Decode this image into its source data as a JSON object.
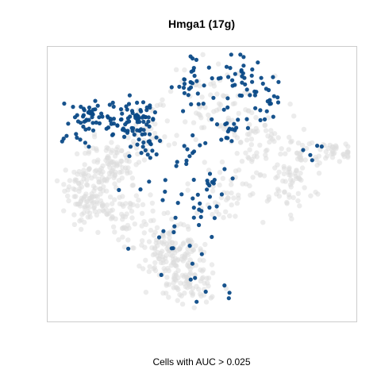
{
  "chart_data": {
    "type": "scatter",
    "title": "Hmga1 (17g)",
    "xlabel": "",
    "ylabel": "",
    "caption": "Cells with AUC > 0.025",
    "grid": false,
    "axes_visible": false,
    "colors": {
      "background_cell": "#dcdcdc",
      "highlighted_cell": "#0b4a87",
      "frame": "#cccccc"
    },
    "series": [
      {
        "role": "cells below threshold",
        "color": "#dcdcdc",
        "clusters": [
          {
            "center": [
              0.13,
              0.53
            ],
            "spread": [
              0.04,
              0.055
            ],
            "count": 110
          },
          {
            "center": [
              0.2,
              0.43
            ],
            "spread": [
              0.05,
              0.05
            ],
            "count": 90
          },
          {
            "center": [
              0.25,
              0.62
            ],
            "spread": [
              0.05,
              0.05
            ],
            "count": 60
          },
          {
            "center": [
              0.4,
              0.74
            ],
            "spread": [
              0.06,
              0.05
            ],
            "count": 140
          },
          {
            "center": [
              0.46,
              0.86
            ],
            "spread": [
              0.05,
              0.04
            ],
            "count": 80
          },
          {
            "center": [
              0.55,
              0.2
            ],
            "spread": [
              0.08,
              0.06
            ],
            "count": 70
          },
          {
            "center": [
              0.58,
              0.52
            ],
            "spread": [
              0.06,
              0.06
            ],
            "count": 50
          },
          {
            "center": [
              0.8,
              0.46
            ],
            "spread": [
              0.05,
              0.09
            ],
            "count": 80
          },
          {
            "center": [
              0.93,
              0.38
            ],
            "spread": [
              0.04,
              0.02
            ],
            "count": 40
          },
          {
            "center": [
              0.66,
              0.35
            ],
            "spread": [
              0.05,
              0.05
            ],
            "count": 45
          },
          {
            "center": [
              0.3,
              0.3
            ],
            "spread": [
              0.05,
              0.05
            ],
            "count": 40
          }
        ]
      },
      {
        "role": "cells with AUC > 0.025",
        "color": "#0b4a87",
        "clusters": [
          {
            "center": [
              0.28,
              0.26
            ],
            "spread": [
              0.035,
              0.04
            ],
            "count": 70
          },
          {
            "center": [
              0.15,
              0.24
            ],
            "spread": [
              0.045,
              0.03
            ],
            "count": 45
          },
          {
            "center": [
              0.08,
              0.32
            ],
            "spread": [
              0.03,
              0.02
            ],
            "count": 12
          },
          {
            "center": [
              0.32,
              0.36
            ],
            "spread": [
              0.03,
              0.03
            ],
            "count": 20
          },
          {
            "center": [
              0.46,
              0.12
            ],
            "spread": [
              0.03,
              0.05
            ],
            "count": 28
          },
          {
            "center": [
              0.62,
              0.11
            ],
            "spread": [
              0.05,
              0.04
            ],
            "count": 30
          },
          {
            "center": [
              0.7,
              0.18
            ],
            "spread": [
              0.03,
              0.05
            ],
            "count": 25
          },
          {
            "center": [
              0.6,
              0.28
            ],
            "spread": [
              0.03,
              0.04
            ],
            "count": 18
          },
          {
            "center": [
              0.53,
              0.52
            ],
            "spread": [
              0.04,
              0.05
            ],
            "count": 25
          },
          {
            "center": [
              0.46,
              0.38
            ],
            "spread": [
              0.02,
              0.03
            ],
            "count": 10
          },
          {
            "center": [
              0.4,
              0.66
            ],
            "spread": [
              0.08,
              0.08
            ],
            "count": 22
          },
          {
            "center": [
              0.52,
              0.86
            ],
            "spread": [
              0.06,
              0.04
            ],
            "count": 8
          },
          {
            "center": [
              0.87,
              0.38
            ],
            "spread": [
              0.03,
              0.02
            ],
            "count": 5
          }
        ]
      }
    ]
  }
}
